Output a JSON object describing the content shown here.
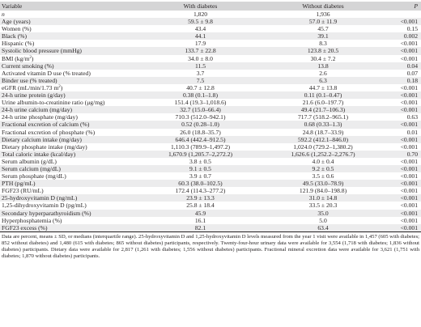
{
  "header": {
    "variable": "Variable",
    "with_diabetes": "With diabetes",
    "without_diabetes": "Without diabetes",
    "p": "P"
  },
  "rows": [
    {
      "label": "n",
      "label_sup": "",
      "label_tail": "",
      "with": "1,820",
      "without": "1,936",
      "p": ""
    },
    {
      "label": "Age (years)",
      "label_sup": "",
      "label_tail": "",
      "with": "59.5 ± 9.8",
      "without": "57.0 ± 11.9",
      "p": "<0.001"
    },
    {
      "label": "Women (%)",
      "label_sup": "",
      "label_tail": "",
      "with": "43.4",
      "without": "45.7",
      "p": "0.15"
    },
    {
      "label": "Black (%)",
      "label_sup": "",
      "label_tail": "",
      "with": "44.1",
      "without": "39.1",
      "p": "0.002"
    },
    {
      "label": "Hispanic (%)",
      "label_sup": "",
      "label_tail": "",
      "with": "17.9",
      "without": "8.3",
      "p": "<0.001"
    },
    {
      "label": "Systolic blood pressure (mmHg)",
      "label_sup": "",
      "label_tail": "",
      "with": "133.7 ± 22.8",
      "without": "123.8 ± 20.5",
      "p": "<0.001"
    },
    {
      "label": "BMI (kg/m",
      "label_sup": "2",
      "label_tail": ")",
      "with": "34.0 ± 8.0",
      "without": "30.4 ± 7.2",
      "p": "<0.001"
    },
    {
      "label": "Current smoking (%)",
      "label_sup": "",
      "label_tail": "",
      "with": "11.5",
      "without": "13.8",
      "p": "0.04"
    },
    {
      "label": "Activated vitamin D use (% treated)",
      "label_sup": "",
      "label_tail": "",
      "with": "3.7",
      "without": "2.6",
      "p": "0.07"
    },
    {
      "label": "Binder use (% treated)",
      "label_sup": "",
      "label_tail": "",
      "with": "7.5",
      "without": "6.3",
      "p": "0.18"
    },
    {
      "label": "eGFR (mL/min/1.73 m",
      "label_sup": "2",
      "label_tail": ")",
      "with": "40.7 ± 12.8",
      "without": "44.7 ± 13.8",
      "p": "<0.001"
    },
    {
      "label": "24-h urine protein (g/day)",
      "label_sup": "",
      "label_tail": "",
      "with": "0.38 (0.1–1.8)",
      "without": "0.11 (0.1–0.47)",
      "p": "<0.001"
    },
    {
      "label": "Urine albumin-to-creatinine ratio (μg/mg)",
      "label_sup": "",
      "label_tail": "",
      "with": "151.4 (19.3–1,018.6)",
      "without": "21.6 (6.0–197.7)",
      "p": "<0.001"
    },
    {
      "label": "24-h urine calcium (mg/day)",
      "label_sup": "",
      "label_tail": "",
      "with": "32.7 (15.0–66.4)",
      "without": "49.4 (21.7–106.3)",
      "p": "<0.001"
    },
    {
      "label": "24-h urine phosphate (mg/day)",
      "label_sup": "",
      "label_tail": "",
      "with": "710.3 (512.0–942.1)",
      "without": "717.7 (518.2–965.1)",
      "p": "0.63"
    },
    {
      "label": "Fractional excretion of calcium (%)",
      "label_sup": "",
      "label_tail": "",
      "with": "0.52 (0.28–1.0)",
      "without": "0.68 (0.33–1.3)",
      "p": "<0.001"
    },
    {
      "label": "Fractional excretion of phosphate (%)",
      "label_sup": "",
      "label_tail": "",
      "with": "26.0 (18.8–35.7)",
      "without": "24.8 (18.7–33.9)",
      "p": "0.01"
    },
    {
      "label": "Dietary calcium intake (mg/day)",
      "label_sup": "",
      "label_tail": "",
      "with": "646.4 (442.4–912.5)",
      "without": "592.2 (412.1–846.0)",
      "p": "<0.001"
    },
    {
      "label": "Dietary phosphate intake (mg/day)",
      "label_sup": "",
      "label_tail": "",
      "with": "1,110.3 (789.9–1,497.2)",
      "without": "1,024.0 (729.2–1,380.2)",
      "p": "<0.001"
    },
    {
      "label": "Total caloric intake (kcal/day)",
      "label_sup": "",
      "label_tail": "",
      "with": "1,670.9 (1,205.7–2,272.2)",
      "without": "1,626.6 (1,252.2–2,276.7)",
      "p": "0.70"
    },
    {
      "label": "Serum albumin (g/dL)",
      "label_sup": "",
      "label_tail": "",
      "with": "3.8 ± 0.5",
      "without": "4.0 ± 0.4",
      "p": "<0.001"
    },
    {
      "label": "Serum calcium (mg/dL)",
      "label_sup": "",
      "label_tail": "",
      "with": "9.1 ± 0.5",
      "without": "9.2 ± 0.5",
      "p": "<0.001"
    },
    {
      "label": "Serum phosphate (mg/dL)",
      "label_sup": "",
      "label_tail": "",
      "with": "3.9 ± 0.7",
      "without": "3.5 ± 0.6",
      "p": "<0.001"
    },
    {
      "label": "PTH (pg/mL)",
      "label_sup": "",
      "label_tail": "",
      "with": "60.3 (38.0–102.5)",
      "without": "49.5 (33.0–78.9)",
      "p": "<0.001"
    },
    {
      "label": "FGF23 (RU/mL)",
      "label_sup": "",
      "label_tail": "",
      "with": "172.4 (114.3–277.2)",
      "without": "121.9 (84.0–198.8)",
      "p": "<0.001"
    },
    {
      "label": "25-hydroxyvitamin D (ng/mL)",
      "label_sup": "",
      "label_tail": "",
      "with": "23.9 ± 13.3",
      "without": "31.0 ± 14.8",
      "p": "<0.001"
    },
    {
      "label": "1,25-dihydroxyvitamin D (pg/mL)",
      "label_sup": "",
      "label_tail": "",
      "with": "25.8 ± 18.4",
      "without": "33.5 ± 20.3",
      "p": "<0.001"
    },
    {
      "label": "Secondary hyperparathyroidism (%)",
      "label_sup": "",
      "label_tail": "",
      "with": "45.9",
      "without": "35.0",
      "p": "<0.001"
    },
    {
      "label": "Hyperphosphatemia (%)",
      "label_sup": "",
      "label_tail": "",
      "with": "16.1",
      "without": "5.0",
      "p": "<0.001"
    },
    {
      "label": "FGF23 excess (%)",
      "label_sup": "",
      "label_tail": "",
      "with": "82.1",
      "without": "63.4",
      "p": "<0.001"
    }
  ],
  "footnote": "Data are percent, means ± SD, or medians (interquartile range). 25-hydroxyvitamin D and 1,25-hydroxyvitamin D levels measured from the year 1 visit were available in 1,457 (605 with diabetes; 852 without diabetes) and 1,480 (615 with diabetes; 865 without diabetes) participants, respectively. Twenty-four-hour urinary data were available for 3,554 (1,718 with diabetes; 1,836 without diabetes) participants. Dietary data were available for 2,817 (1,261 with diabetes; 1,556 without diabetes) participants. Fractional mineral excretion data were available for 3,621 (1,751 with diabetes; 1,870 without diabetes) participants."
}
